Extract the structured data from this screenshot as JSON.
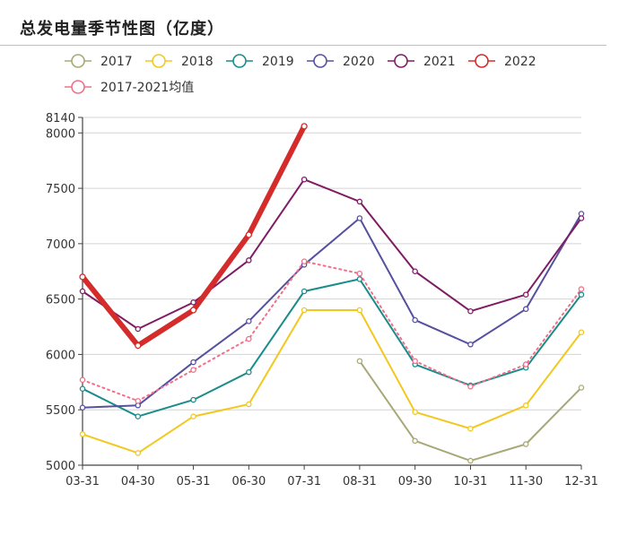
{
  "title": "总发电量季节性图（亿度）",
  "chart_data": {
    "type": "line",
    "categories": [
      "03-31",
      "04-30",
      "05-31",
      "06-30",
      "07-31",
      "08-31",
      "09-30",
      "10-31",
      "11-30",
      "12-31"
    ],
    "y_ticks": [
      5000,
      5500,
      6000,
      6500,
      7000,
      7500,
      8000,
      8140
    ],
    "ylim": [
      5000,
      8140
    ],
    "grid": "horizontal",
    "legend_position": "top",
    "series": [
      {
        "name": "2017",
        "color": "#a8a877",
        "style": "solid",
        "width": 2,
        "values": [
          null,
          null,
          null,
          null,
          null,
          5940,
          5220,
          5040,
          5190,
          5700
        ]
      },
      {
        "name": "2018",
        "color": "#f2c81e",
        "style": "solid",
        "width": 2,
        "values": [
          5280,
          5110,
          5440,
          5550,
          6400,
          6400,
          5480,
          5330,
          5540,
          6200
        ]
      },
      {
        "name": "2019",
        "color": "#1a8c8c",
        "style": "solid",
        "width": 2,
        "values": [
          5690,
          5440,
          5590,
          5840,
          6570,
          6680,
          5910,
          5720,
          5880,
          6540
        ]
      },
      {
        "name": "2020",
        "color": "#55509f",
        "style": "solid",
        "width": 2,
        "values": [
          5520,
          5540,
          5930,
          6300,
          6810,
          7230,
          6310,
          6090,
          6410,
          7270
        ]
      },
      {
        "name": "2021",
        "color": "#7f1c63",
        "style": "solid",
        "width": 2,
        "values": [
          6570,
          6230,
          6470,
          6850,
          7580,
          7380,
          6750,
          6390,
          6540,
          7230
        ]
      },
      {
        "name": "2022",
        "color": "#d42b2b",
        "style": "solid",
        "width": 6,
        "values": [
          6700,
          6080,
          6400,
          7080,
          8060,
          null,
          null,
          null,
          null,
          null
        ]
      },
      {
        "name": "2017-2021均值",
        "color": "#f0708a",
        "style": "dotted",
        "width": 2,
        "values": [
          5770,
          5580,
          5860,
          6140,
          6840,
          6730,
          5940,
          5710,
          5910,
          6590
        ]
      }
    ]
  }
}
